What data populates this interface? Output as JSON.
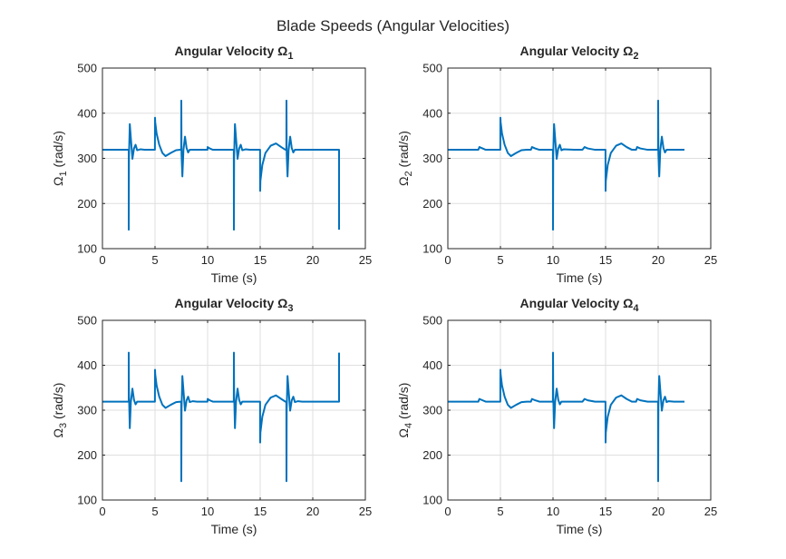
{
  "figure": {
    "title": "Blade Speeds (Angular Velocities)"
  },
  "colors": {
    "line": "#0072BD",
    "grid": "#DFDFDF",
    "axis": "#262626",
    "background": "#FFFFFF"
  },
  "chart_data": [
    {
      "type": "line",
      "title_prefix": "Angular Velocity Ω",
      "title_sub": "1",
      "ylabel_prefix": "Ω",
      "ylabel_sub": "1",
      "ylabel_suffix": " (rad/s)",
      "xlabel": "Time (s)",
      "xlim": [
        0,
        25
      ],
      "ylim": [
        100,
        500
      ],
      "xticks": [
        "0",
        "5",
        "10",
        "15",
        "20",
        "25"
      ],
      "yticks": [
        "100",
        "200",
        "300",
        "400",
        "500"
      ],
      "grid": true,
      "series": [
        {
          "x": [
            0,
            2.5,
            2.5,
            2.52,
            2.6,
            2.7,
            2.85,
            3.0,
            3.15,
            3.3,
            3.6,
            4.0,
            4.5,
            4.99,
            5.0,
            5.02,
            5.15,
            5.4,
            5.7,
            6.0,
            6.5,
            7.0,
            7.4,
            7.49,
            7.5,
            7.52,
            7.6,
            7.7,
            7.85,
            8.0,
            8.15,
            8.3,
            8.6,
            9.0,
            9.5,
            9.99,
            10.0,
            10.2,
            10.5,
            11.0,
            12.0,
            12.49,
            12.5,
            12.52,
            12.6,
            12.7,
            12.85,
            13.0,
            13.15,
            13.3,
            13.6,
            14.0,
            14.5,
            14.99,
            15.0,
            15.02,
            15.2,
            15.5,
            16.0,
            16.5,
            17.0,
            17.4,
            17.49,
            17.5,
            17.52,
            17.6,
            17.7,
            17.85,
            18.0,
            18.15,
            18.3,
            18.6,
            19.0,
            19.5,
            20.0,
            21.0,
            22.0,
            22.49,
            22.5,
            22.5
          ],
          "y": [
            319,
            319,
            142,
            300,
            376,
            345,
            299,
            322,
            330,
            318,
            320,
            319,
            319,
            319,
            390,
            380,
            355,
            330,
            312,
            305,
            312,
            318,
            319,
            319,
            428,
            310,
            260,
            318,
            348,
            323,
            313,
            319,
            319,
            319,
            319,
            319,
            325,
            322,
            319,
            319,
            319,
            319,
            142,
            300,
            376,
            345,
            299,
            322,
            330,
            318,
            320,
            319,
            319,
            319,
            228,
            250,
            285,
            312,
            328,
            333,
            325,
            319,
            319,
            428,
            310,
            260,
            318,
            348,
            323,
            313,
            319,
            319,
            319,
            319,
            319,
            319,
            319,
            319,
            319,
            142
          ]
        }
      ]
    },
    {
      "type": "line",
      "title_prefix": "Angular Velocity Ω",
      "title_sub": "2",
      "ylabel_prefix": "Ω",
      "ylabel_sub": "2",
      "ylabel_suffix": " (rad/s)",
      "xlabel": "Time (s)",
      "xlim": [
        0,
        25
      ],
      "ylim": [
        100,
        500
      ],
      "xticks": [
        "0",
        "5",
        "10",
        "15",
        "20",
        "25"
      ],
      "yticks": [
        "100",
        "200",
        "300",
        "400",
        "500"
      ],
      "grid": true,
      "series": [
        {
          "x": [
            0,
            2.9,
            3.0,
            3.3,
            3.6,
            4.0,
            4.99,
            5.0,
            5.02,
            5.15,
            5.4,
            5.7,
            6.0,
            6.5,
            7.0,
            7.5,
            7.9,
            8.0,
            8.3,
            8.7,
            9.0,
            9.99,
            10.0,
            10.02,
            10.1,
            10.2,
            10.35,
            10.5,
            10.65,
            10.8,
            11.0,
            12.0,
            12.8,
            13.0,
            13.3,
            14.0,
            14.99,
            15.0,
            15.02,
            15.2,
            15.5,
            16.0,
            16.5,
            17.0,
            17.5,
            17.9,
            18.0,
            18.3,
            19.0,
            19.99,
            20.0,
            20.02,
            20.1,
            20.2,
            20.35,
            20.5,
            20.65,
            20.8,
            21.0,
            21.5,
            22.5
          ],
          "y": [
            319,
            319,
            325,
            322,
            319,
            319,
            319,
            390,
            380,
            355,
            330,
            312,
            305,
            312,
            318,
            319,
            319,
            325,
            322,
            319,
            319,
            319,
            142,
            310,
            376,
            345,
            299,
            322,
            330,
            318,
            320,
            319,
            319,
            325,
            322,
            319,
            319,
            228,
            250,
            285,
            312,
            328,
            333,
            325,
            319,
            319,
            325,
            322,
            319,
            319,
            428,
            310,
            260,
            318,
            348,
            323,
            313,
            319,
            319,
            319,
            319
          ]
        }
      ]
    },
    {
      "type": "line",
      "title_prefix": "Angular Velocity Ω",
      "title_sub": "3",
      "ylabel_prefix": "Ω",
      "ylabel_sub": "3",
      "ylabel_suffix": " (rad/s)",
      "xlabel": "Time (s)",
      "xlim": [
        0,
        25
      ],
      "ylim": [
        100,
        500
      ],
      "xticks": [
        "0",
        "5",
        "10",
        "15",
        "20",
        "25"
      ],
      "yticks": [
        "100",
        "200",
        "300",
        "400",
        "500"
      ],
      "grid": true,
      "series": [
        {
          "x": [
            0,
            2.5,
            2.5,
            2.52,
            2.6,
            2.7,
            2.85,
            3.0,
            3.15,
            3.3,
            3.6,
            4.0,
            4.5,
            4.99,
            5.0,
            5.02,
            5.15,
            5.4,
            5.7,
            6.0,
            6.5,
            7.0,
            7.4,
            7.49,
            7.5,
            7.52,
            7.6,
            7.7,
            7.85,
            8.0,
            8.15,
            8.3,
            8.6,
            9.0,
            9.5,
            9.99,
            10.0,
            10.2,
            10.5,
            11.0,
            12.0,
            12.49,
            12.5,
            12.52,
            12.6,
            12.7,
            12.85,
            13.0,
            13.15,
            13.3,
            13.6,
            14.0,
            14.5,
            14.99,
            15.0,
            15.02,
            15.2,
            15.5,
            16.0,
            16.5,
            17.0,
            17.4,
            17.49,
            17.5,
            17.52,
            17.6,
            17.7,
            17.85,
            18.0,
            18.15,
            18.3,
            18.6,
            19.0,
            19.5,
            20.0,
            21.0,
            22.0,
            22.49,
            22.5,
            22.5
          ],
          "y": [
            319,
            319,
            428,
            340,
            260,
            318,
            348,
            323,
            313,
            319,
            319,
            319,
            319,
            319,
            390,
            380,
            355,
            330,
            312,
            305,
            312,
            318,
            319,
            319,
            142,
            300,
            376,
            345,
            299,
            322,
            330,
            318,
            320,
            319,
            319,
            319,
            325,
            322,
            319,
            319,
            319,
            319,
            428,
            340,
            260,
            318,
            348,
            323,
            313,
            319,
            319,
            319,
            319,
            319,
            228,
            250,
            285,
            312,
            328,
            333,
            325,
            319,
            319,
            142,
            300,
            376,
            345,
            299,
            322,
            330,
            318,
            320,
            319,
            319,
            319,
            319,
            319,
            319,
            319,
            428
          ]
        }
      ]
    },
    {
      "type": "line",
      "title_prefix": "Angular Velocity Ω",
      "title_sub": "4",
      "ylabel_prefix": "Ω",
      "ylabel_sub": "4",
      "ylabel_suffix": " (rad/s)",
      "xlabel": "Time (s)",
      "xlim": [
        0,
        25
      ],
      "ylim": [
        100,
        500
      ],
      "xticks": [
        "0",
        "5",
        "10",
        "15",
        "20",
        "25"
      ],
      "yticks": [
        "100",
        "200",
        "300",
        "400",
        "500"
      ],
      "grid": true,
      "series": [
        {
          "x": [
            0,
            2.9,
            3.0,
            3.3,
            3.6,
            4.0,
            4.99,
            5.0,
            5.02,
            5.15,
            5.4,
            5.7,
            6.0,
            6.5,
            7.0,
            7.5,
            7.9,
            8.0,
            8.3,
            8.7,
            9.0,
            9.99,
            10.0,
            10.02,
            10.1,
            10.2,
            10.35,
            10.5,
            10.65,
            10.8,
            11.0,
            12.0,
            12.8,
            13.0,
            13.3,
            14.0,
            14.99,
            15.0,
            15.02,
            15.2,
            15.5,
            16.0,
            16.5,
            17.0,
            17.5,
            17.9,
            18.0,
            18.3,
            19.0,
            19.99,
            20.0,
            20.02,
            20.1,
            20.2,
            20.35,
            20.5,
            20.65,
            20.8,
            21.0,
            21.5,
            22.5
          ],
          "y": [
            319,
            319,
            325,
            322,
            319,
            319,
            319,
            390,
            380,
            355,
            330,
            312,
            305,
            312,
            318,
            319,
            319,
            325,
            322,
            319,
            319,
            319,
            428,
            330,
            260,
            318,
            348,
            323,
            313,
            319,
            319,
            319,
            319,
            325,
            322,
            319,
            319,
            228,
            250,
            285,
            312,
            328,
            333,
            325,
            319,
            319,
            325,
            322,
            319,
            319,
            142,
            310,
            376,
            345,
            299,
            322,
            330,
            318,
            320,
            319,
            319
          ]
        }
      ]
    }
  ]
}
